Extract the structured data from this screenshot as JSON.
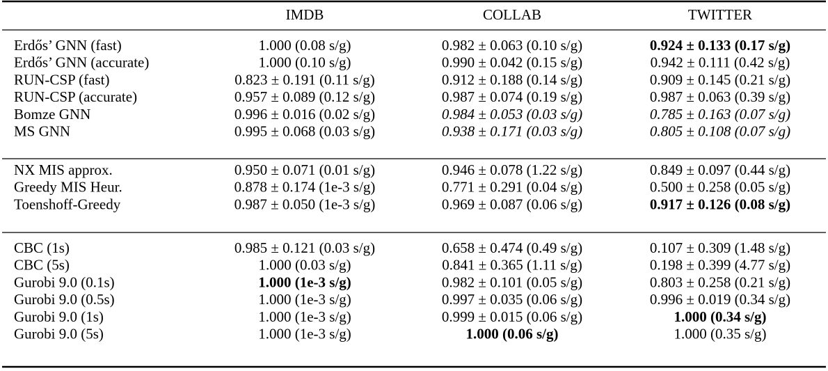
{
  "table": {
    "header": [
      "IMDB",
      "COLLAB",
      "TWITTER"
    ],
    "groups": [
      {
        "rows": [
          [
            "Erdős’ GNN (fast)",
            "1.000 (0.08 s/g)",
            "0.982 ± 0.063 (0.10 s/g)",
            {
              "text": "0.924 ± 0.133 (0.17 s/g)",
              "style": "bold"
            }
          ],
          [
            "Erdős’ GNN (accurate)",
            "1.000 (0.10 s/g)",
            "0.990 ± 0.042 (0.15 s/g)",
            "0.942 ± 0.111 (0.42 s/g)"
          ],
          [
            "RUN-CSP (fast)",
            "0.823 ± 0.191 (0.11 s/g)",
            "0.912 ± 0.188 (0.14 s/g)",
            "0.909 ± 0.145 (0.21 s/g)"
          ],
          [
            "RUN-CSP (accurate)",
            "0.957 ± 0.089 (0.12 s/g)",
            "0.987 ± 0.074 (0.19 s/g)",
            "0.987 ± 0.063 (0.39 s/g)"
          ],
          [
            "Bomze GNN",
            "0.996 ± 0.016 (0.02 s/g)",
            {
              "text": "0.984 ± 0.053 (0.03 s/g)",
              "style": "italic"
            },
            {
              "text": "0.785 ± 0.163 (0.07 s/g)",
              "style": "italic"
            }
          ],
          [
            "MS GNN",
            "0.995 ± 0.068 (0.03 s/g)",
            {
              "text": "0.938 ± 0.171 (0.03 s/g)",
              "style": "italic"
            },
            {
              "text": "0.805 ± 0.108 (0.07 s/g)",
              "style": "italic"
            }
          ]
        ]
      },
      {
        "rows": [
          [
            "NX MIS approx.",
            "0.950 ± 0.071 (0.01 s/g)",
            "0.946 ± 0.078 (1.22 s/g)",
            "0.849 ± 0.097 (0.44 s/g)"
          ],
          [
            "Greedy MIS Heur.",
            "0.878 ± 0.174 (1e-3 s/g)",
            "0.771 ± 0.291 (0.04 s/g)",
            "0.500 ± 0.258 (0.05 s/g)"
          ],
          [
            "Toenshoff-Greedy",
            "0.987 ± 0.050 (1e-3 s/g)",
            "0.969 ± 0.087 (0.06 s/g)",
            {
              "text": "0.917 ± 0.126 (0.08 s/g)",
              "style": "bold"
            }
          ]
        ]
      },
      {
        "rows": [
          [
            "CBC (1s)",
            "0.985 ± 0.121 (0.03 s/g)",
            "0.658 ± 0.474 (0.49 s/g)",
            "0.107 ± 0.309 (1.48 s/g)"
          ],
          [
            "CBC (5s)",
            "1.000 (0.03 s/g)",
            "0.841 ± 0.365 (1.11 s/g)",
            "0.198 ± 0.399 (4.77 s/g)"
          ],
          [
            "Gurobi 9.0 (0.1s)",
            {
              "text": "1.000 (1e-3 s/g)",
              "style": "bold"
            },
            "0.982 ± 0.101 (0.05 s/g)",
            "0.803 ± 0.258 (0.21 s/g)"
          ],
          [
            "Gurobi 9.0 (0.5s)",
            "1.000 (1e-3 s/g)",
            "0.997 ± 0.035 (0.06 s/g)",
            "0.996 ± 0.019 (0.34 s/g)"
          ],
          [
            "Gurobi 9.0 (1s)",
            "1.000 (1e-3 s/g)",
            "0.999 ± 0.015 (0.06 s/g)",
            {
              "text": "1.000 (0.34 s/g)",
              "style": "bold"
            }
          ],
          [
            "Gurobi 9.0 (5s)",
            "1.000 (1e-3 s/g)",
            {
              "text": "1.000 (0.06 s/g)",
              "style": "bold"
            },
            "1.000 (0.35 s/g)"
          ]
        ]
      }
    ]
  }
}
